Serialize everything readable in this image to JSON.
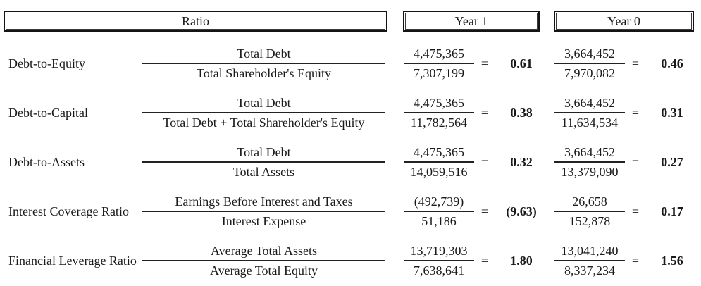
{
  "table": {
    "headers": {
      "ratio": "Ratio",
      "year1": "Year 1",
      "year0": "Year 0"
    },
    "equals": "=",
    "colors": {
      "text": "#1a1a1a",
      "border": "#141414",
      "background": "#ffffff"
    },
    "rows": [
      {
        "label": "Debt-to-Equity",
        "numerator": "Total Debt",
        "denominator": "Total Shareholder's Equity",
        "year1": {
          "num": "4,475,365",
          "den": "7,307,199",
          "result": "0.61"
        },
        "year0": {
          "num": "3,664,452",
          "den": "7,970,082",
          "result": "0.46"
        }
      },
      {
        "label": "Debt-to-Capital",
        "numerator": "Total Debt",
        "denominator": "Total Debt + Total Shareholder's Equity",
        "year1": {
          "num": "4,475,365",
          "den": "11,782,564",
          "result": "0.38"
        },
        "year0": {
          "num": "3,664,452",
          "den": "11,634,534",
          "result": "0.31"
        }
      },
      {
        "label": "Debt-to-Assets",
        "numerator": "Total Debt",
        "denominator": "Total Assets",
        "year1": {
          "num": "4,475,365",
          "den": "14,059,516",
          "result": "0.32"
        },
        "year0": {
          "num": "3,664,452",
          "den": "13,379,090",
          "result": "0.27"
        }
      },
      {
        "label": "Interest Coverage Ratio",
        "numerator": "Earnings Before Interest and Taxes",
        "denominator": "Interest Expense",
        "year1": {
          "num": "(492,739)",
          "den": "51,186",
          "result": "(9.63)"
        },
        "year0": {
          "num": "26,658",
          "den": "152,878",
          "result": "0.17"
        }
      },
      {
        "label": "Financial Leverage Ratio",
        "numerator": "Average Total Assets",
        "denominator": "Average Total Equity",
        "year1": {
          "num": "13,719,303",
          "den": "7,638,641",
          "result": "1.80"
        },
        "year0": {
          "num": "13,041,240",
          "den": "8,337,234",
          "result": "1.56"
        }
      }
    ]
  }
}
